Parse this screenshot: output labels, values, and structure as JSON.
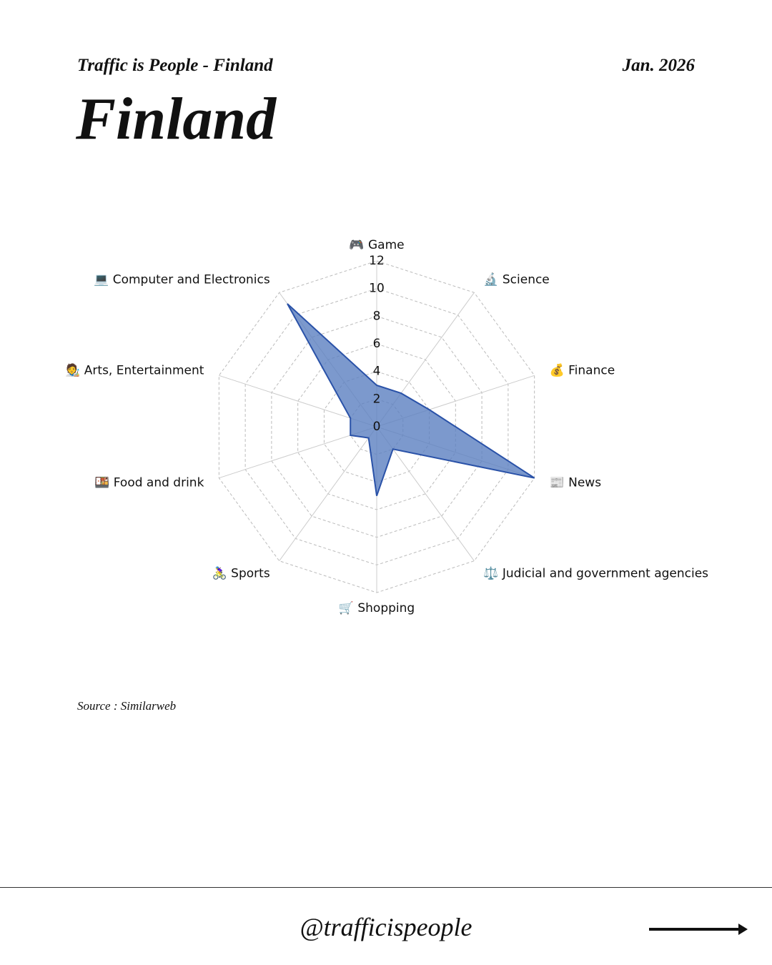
{
  "header": {
    "brand": "Traffic is People - Finland",
    "date": "Jan. 2026",
    "title": "Finland"
  },
  "chart_data": {
    "type": "radar",
    "categories": [
      "🎮 Game",
      "🔬 Science",
      "💰 Finance",
      "📰 News",
      "⚖️ Judicial and government agencies",
      "🛒 Shopping",
      "🚴‍♀️ Sports",
      "🍱 Food and drink",
      "🧑‍🎨 Arts, Entertainment",
      "💻 Computer and Electronics"
    ],
    "values": [
      3,
      3,
      4,
      12,
      2,
      5,
      1,
      2,
      2,
      11
    ],
    "color": "#2a52a8",
    "fill": "#5b7fc0",
    "rlim": [
      0,
      12
    ],
    "rticks": [
      0,
      2,
      4,
      6,
      8,
      10,
      12
    ],
    "grid": true
  },
  "source": "Source : Similarweb",
  "footer": {
    "handle": "@trafficispeople"
  }
}
